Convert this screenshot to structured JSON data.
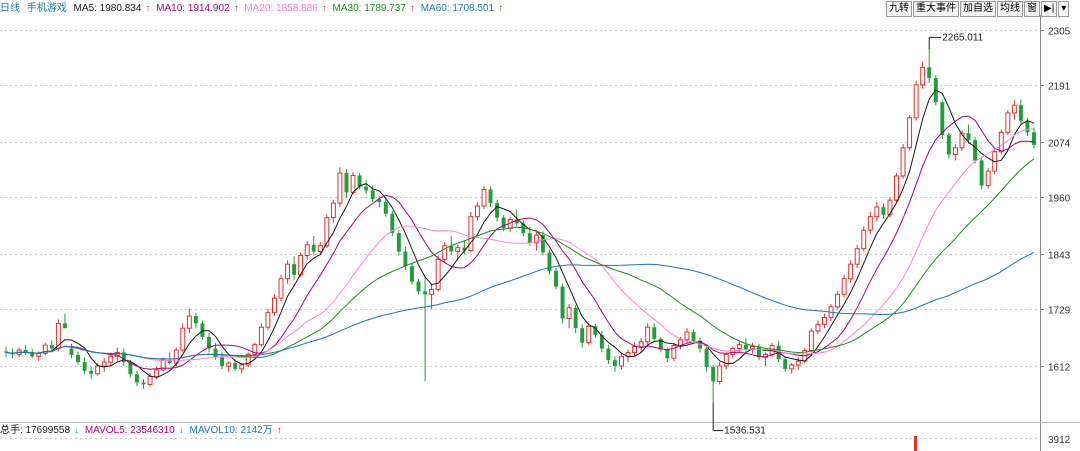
{
  "header": {
    "period": "日线",
    "indicator": "手机游戏",
    "ma": [
      {
        "label": "MA5: 1980.834",
        "color": "#1a1a1a",
        "arrow": "↑"
      },
      {
        "label": "MA10: 1914.902",
        "color": "#b0007a",
        "arrow": "↑"
      },
      {
        "label": "MA20: 1858.886",
        "color": "#ff7fd8",
        "arrow": "↑"
      },
      {
        "label": "MA30: 1789.737",
        "color": "#1a8f1a",
        "arrow": "↑"
      },
      {
        "label": "MA60: 1708.501",
        "color": "#1f77b4",
        "arrow": "↑"
      }
    ]
  },
  "toolbar": {
    "buttons": [
      "九转",
      "重大事件",
      "加自选",
      "均线",
      "窗",
      "▶|",
      "▾"
    ]
  },
  "volume": {
    "total_label": "总手: 17699558",
    "total_arrow": "↓",
    "mavol5_label": "MAVOL5: 23546310",
    "mavol5_arrow": "↓",
    "mavol10_label": "MAVOL10: 2142万",
    "mavol10_arrow": "↑",
    "axis_label": "3912"
  },
  "colors": {
    "up": "#e0312d",
    "down": "#1f9e3a",
    "arrow_up": "#e0312d",
    "arrow_down": "#1fb0c8",
    "grid": "#c8c8c8",
    "axis_text": "#333333",
    "ma5": "#1a1a1a",
    "ma10": "#b0007a",
    "ma20": "#ff7fd8",
    "ma30": "#1a8f1a",
    "ma60": "#1f77b4"
  },
  "chart_data": {
    "type": "candlestick",
    "y_ticks": [
      2305,
      2191,
      2074,
      1960,
      1843,
      1729,
      1612
    ],
    "ylim": [
      1490,
      2305
    ],
    "grid": true,
    "annotations": [
      {
        "label": "2265.011",
        "value": 2265.011,
        "kind": "high"
      },
      {
        "label": "1536.531",
        "value": 1536.531,
        "kind": "low"
      }
    ],
    "ohlc": [
      [
        1642,
        1652,
        1630,
        1640
      ],
      [
        1640,
        1648,
        1628,
        1636
      ],
      [
        1636,
        1650,
        1630,
        1645
      ],
      [
        1645,
        1655,
        1635,
        1641
      ],
      [
        1641,
        1648,
        1628,
        1632
      ],
      [
        1632,
        1642,
        1622,
        1638
      ],
      [
        1638,
        1660,
        1634,
        1655
      ],
      [
        1655,
        1665,
        1640,
        1648
      ],
      [
        1648,
        1708,
        1642,
        1700
      ],
      [
        1700,
        1720,
        1690,
        1690
      ],
      [
        1648,
        1658,
        1628,
        1635
      ],
      [
        1635,
        1642,
        1615,
        1620
      ],
      [
        1620,
        1630,
        1596,
        1602
      ],
      [
        1602,
        1610,
        1585,
        1596
      ],
      [
        1596,
        1618,
        1592,
        1612
      ],
      [
        1612,
        1628,
        1600,
        1620
      ],
      [
        1620,
        1640,
        1612,
        1632
      ],
      [
        1632,
        1650,
        1622,
        1640
      ],
      [
        1640,
        1648,
        1612,
        1620
      ],
      [
        1620,
        1625,
        1588,
        1595
      ],
      [
        1595,
        1602,
        1570,
        1578
      ],
      [
        1578,
        1585,
        1565,
        1574
      ],
      [
        1574,
        1598,
        1570,
        1590
      ],
      [
        1590,
        1610,
        1585,
        1604
      ],
      [
        1604,
        1630,
        1600,
        1624
      ],
      [
        1624,
        1640,
        1615,
        1618
      ],
      [
        1618,
        1650,
        1612,
        1645
      ],
      [
        1645,
        1700,
        1640,
        1690
      ],
      [
        1690,
        1730,
        1680,
        1715
      ],
      [
        1715,
        1722,
        1690,
        1700
      ],
      [
        1700,
        1706,
        1666,
        1672
      ],
      [
        1672,
        1680,
        1640,
        1648
      ],
      [
        1648,
        1660,
        1625,
        1630
      ],
      [
        1630,
        1640,
        1606,
        1612
      ],
      [
        1612,
        1622,
        1600,
        1618
      ],
      [
        1618,
        1626,
        1602,
        1606
      ],
      [
        1606,
        1618,
        1596,
        1614
      ],
      [
        1614,
        1640,
        1610,
        1636
      ],
      [
        1636,
        1660,
        1630,
        1656
      ],
      [
        1656,
        1700,
        1652,
        1692
      ],
      [
        1692,
        1730,
        1686,
        1722
      ],
      [
        1722,
        1760,
        1716,
        1752
      ],
      [
        1752,
        1800,
        1746,
        1792
      ],
      [
        1792,
        1830,
        1782,
        1822
      ],
      [
        1822,
        1838,
        1790,
        1800
      ],
      [
        1800,
        1846,
        1795,
        1840
      ],
      [
        1840,
        1870,
        1830,
        1862
      ],
      [
        1862,
        1880,
        1840,
        1848
      ],
      [
        1848,
        1868,
        1840,
        1860
      ],
      [
        1860,
        1925,
        1855,
        1918
      ],
      [
        1918,
        1955,
        1908,
        1948
      ],
      [
        1948,
        2022,
        1940,
        2010
      ],
      [
        2010,
        2018,
        1960,
        1970
      ],
      [
        1970,
        2012,
        1966,
        2005
      ],
      [
        2005,
        2010,
        1976,
        1982
      ],
      [
        1982,
        1996,
        1966,
        1974
      ],
      [
        1974,
        1984,
        1950,
        1956
      ],
      [
        1956,
        1962,
        1940,
        1950
      ],
      [
        1950,
        1958,
        1920,
        1926
      ],
      [
        1926,
        1932,
        1880,
        1886
      ],
      [
        1886,
        1892,
        1840,
        1848
      ],
      [
        1848,
        1858,
        1810,
        1818
      ],
      [
        1818,
        1824,
        1780,
        1786
      ],
      [
        1786,
        1792,
        1760,
        1766
      ],
      [
        1766,
        1796,
        1580,
        1760
      ],
      [
        1760,
        1780,
        1730,
        1770
      ],
      [
        1770,
        1840,
        1765,
        1832
      ],
      [
        1832,
        1868,
        1824,
        1860
      ],
      [
        1860,
        1880,
        1840,
        1848
      ],
      [
        1848,
        1862,
        1830,
        1856
      ],
      [
        1856,
        1872,
        1842,
        1850
      ],
      [
        1850,
        1930,
        1846,
        1920
      ],
      [
        1920,
        1950,
        1912,
        1942
      ],
      [
        1942,
        1984,
        1936,
        1976
      ],
      [
        1976,
        1982,
        1940,
        1948
      ],
      [
        1948,
        1955,
        1910,
        1918
      ],
      [
        1918,
        1924,
        1890,
        1896
      ],
      [
        1896,
        1920,
        1888,
        1914
      ],
      [
        1914,
        1934,
        1900,
        1906
      ],
      [
        1906,
        1912,
        1880,
        1886
      ],
      [
        1886,
        1900,
        1860,
        1866
      ],
      [
        1866,
        1890,
        1850,
        1882
      ],
      [
        1882,
        1890,
        1840,
        1846
      ],
      [
        1846,
        1852,
        1800,
        1808
      ],
      [
        1808,
        1814,
        1770,
        1776
      ],
      [
        1776,
        1782,
        1700,
        1710
      ],
      [
        1710,
        1740,
        1690,
        1732
      ],
      [
        1732,
        1738,
        1680,
        1690
      ],
      [
        1690,
        1698,
        1650,
        1660
      ],
      [
        1660,
        1700,
        1655,
        1694
      ],
      [
        1694,
        1700,
        1670,
        1676
      ],
      [
        1676,
        1684,
        1640,
        1648
      ],
      [
        1648,
        1656,
        1616,
        1624
      ],
      [
        1624,
        1632,
        1600,
        1612
      ],
      [
        1612,
        1640,
        1605,
        1632
      ],
      [
        1632,
        1646,
        1620,
        1640
      ],
      [
        1640,
        1660,
        1632,
        1652
      ],
      [
        1652,
        1670,
        1640,
        1662
      ],
      [
        1662,
        1700,
        1656,
        1692
      ],
      [
        1692,
        1700,
        1660,
        1668
      ],
      [
        1668,
        1672,
        1640,
        1646
      ],
      [
        1646,
        1650,
        1620,
        1628
      ],
      [
        1628,
        1660,
        1622,
        1654
      ],
      [
        1654,
        1672,
        1646,
        1666
      ],
      [
        1666,
        1690,
        1660,
        1682
      ],
      [
        1682,
        1688,
        1660,
        1664
      ],
      [
        1664,
        1670,
        1640,
        1648
      ],
      [
        1648,
        1652,
        1600,
        1610
      ],
      [
        1610,
        1614,
        1536.531,
        1580
      ],
      [
        1580,
        1620,
        1574,
        1612
      ],
      [
        1612,
        1640,
        1606,
        1636
      ],
      [
        1636,
        1652,
        1628,
        1648
      ],
      [
        1648,
        1664,
        1640,
        1656
      ],
      [
        1656,
        1670,
        1640,
        1646
      ],
      [
        1646,
        1660,
        1638,
        1652
      ],
      [
        1652,
        1658,
        1624,
        1630
      ],
      [
        1630,
        1640,
        1612,
        1636
      ],
      [
        1636,
        1660,
        1630,
        1654
      ],
      [
        1654,
        1664,
        1620,
        1626
      ],
      [
        1626,
        1632,
        1600,
        1606
      ],
      [
        1606,
        1618,
        1596,
        1614
      ],
      [
        1614,
        1630,
        1604,
        1622
      ],
      [
        1622,
        1650,
        1618,
        1644
      ],
      [
        1644,
        1690,
        1640,
        1684
      ],
      [
        1684,
        1706,
        1678,
        1698
      ],
      [
        1698,
        1720,
        1690,
        1712
      ],
      [
        1712,
        1740,
        1704,
        1734
      ],
      [
        1734,
        1766,
        1728,
        1760
      ],
      [
        1760,
        1800,
        1754,
        1792
      ],
      [
        1792,
        1830,
        1784,
        1822
      ],
      [
        1822,
        1862,
        1814,
        1854
      ],
      [
        1854,
        1900,
        1848,
        1892
      ],
      [
        1892,
        1930,
        1884,
        1920
      ],
      [
        1920,
        1950,
        1910,
        1940
      ],
      [
        1940,
        1948,
        1916,
        1924
      ],
      [
        1924,
        1960,
        1918,
        1954
      ],
      [
        1954,
        2010,
        1948,
        2004
      ],
      [
        2004,
        2070,
        1998,
        2062
      ],
      [
        2062,
        2130,
        2056,
        2124
      ],
      [
        2124,
        2200,
        2118,
        2192
      ],
      [
        2192,
        2240,
        2184,
        2228
      ],
      [
        2228,
        2265.011,
        2196,
        2206
      ],
      [
        2206,
        2212,
        2150,
        2156
      ],
      [
        2156,
        2160,
        2080,
        2088
      ],
      [
        2088,
        2094,
        2040,
        2048
      ],
      [
        2048,
        2070,
        2036,
        2062
      ],
      [
        2062,
        2098,
        2056,
        2092
      ],
      [
        2092,
        2110,
        2070,
        2078
      ],
      [
        2078,
        2084,
        2030,
        2036
      ],
      [
        2036,
        2044,
        1976,
        1984
      ],
      [
        1984,
        2020,
        1978,
        2014
      ],
      [
        2014,
        2060,
        2008,
        2054
      ],
      [
        2054,
        2100,
        2048,
        2094
      ],
      [
        2094,
        2140,
        2088,
        2134
      ],
      [
        2134,
        2160,
        2120,
        2150
      ],
      [
        2150,
        2162,
        2110,
        2118
      ],
      [
        2118,
        2124,
        2086,
        2094
      ],
      [
        2094,
        2104,
        2060,
        2068
      ]
    ],
    "volume_visible": [
      3912
    ]
  }
}
